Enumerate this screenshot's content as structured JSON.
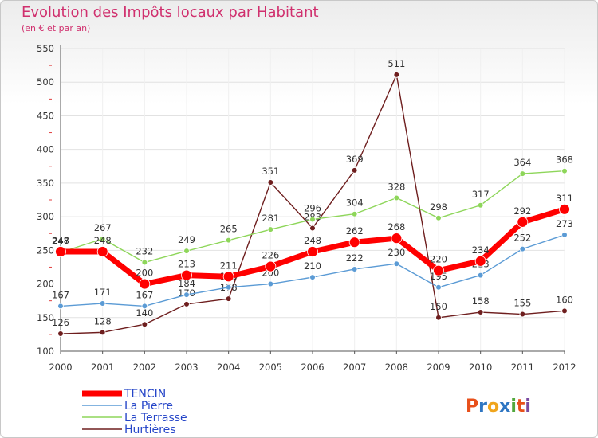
{
  "title": "Evolution des Impôts locaux par Habitant",
  "subtitle": "(en € et par an)",
  "logo": {
    "text": "Proxiti",
    "letters": [
      "P",
      "r",
      "o",
      "x",
      "i",
      "t",
      "i"
    ],
    "letter_colors": [
      "#e8501b",
      "#2f76c2",
      "#f0a51c",
      "#2f76c2",
      "#52a83d",
      "#e8501b",
      "#7a4aa0"
    ]
  },
  "chart_data": {
    "type": "line",
    "title": "Evolution des Impôts locaux par Habitant",
    "subtitle": "(en € et par an)",
    "xlabel": "",
    "ylabel": "",
    "x": [
      "2000",
      "2001",
      "2002",
      "2003",
      "2004",
      "2005",
      "2006",
      "2007",
      "2008",
      "2009",
      "2010",
      "2011",
      "2012"
    ],
    "ylim": [
      100,
      550
    ],
    "yticks": [
      100,
      150,
      200,
      250,
      300,
      350,
      400,
      450,
      500,
      550
    ],
    "grid": true,
    "legend_position": "bottom-left",
    "series": [
      {
        "name": "Hurtières",
        "color": "#6e1e1e",
        "values": [
          126,
          128,
          140,
          170,
          178,
          351,
          283,
          369,
          511,
          150,
          158,
          155,
          160
        ]
      },
      {
        "name": "La Terrasse",
        "color": "#8ed65a",
        "values": [
          247,
          267,
          232,
          249,
          265,
          281,
          296,
          304,
          328,
          298,
          317,
          364,
          368
        ]
      },
      {
        "name": "La Pierre",
        "color": "#5b9bd5",
        "values": [
          167,
          171,
          167,
          184,
          195,
          200,
          210,
          222,
          230,
          195,
          213,
          252,
          273
        ]
      },
      {
        "name": "TENCIN",
        "color": "#ff0000",
        "values": [
          248,
          248,
          200,
          213,
          211,
          226,
          248,
          262,
          268,
          220,
          234,
          292,
          311
        ]
      }
    ],
    "legend": [
      "TENCIN",
      "La Pierre",
      "La Terrasse",
      "Hurtières"
    ]
  }
}
